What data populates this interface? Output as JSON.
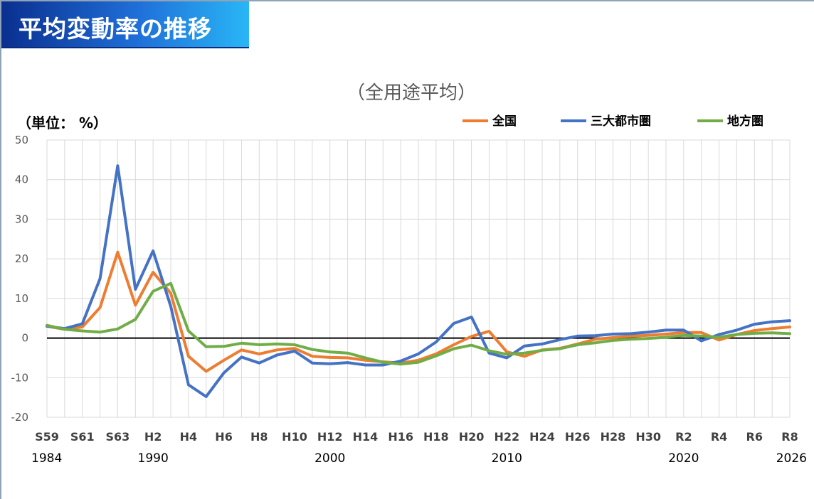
{
  "page_title": "平均変動率の推移",
  "colors": {
    "banner_start": "#0a2f8f",
    "banner_end": "#29b6f6",
    "national": "#ed7d31",
    "three_metro": "#4472c4",
    "regional": "#70ad47",
    "zero_line": "#000000",
    "grid": "#d9d9d9"
  },
  "chart_data": {
    "type": "line",
    "title": "（全用途平均）",
    "unit_label": "（単位：  %）",
    "legend_position": "top-right",
    "grid": true,
    "ylim": [
      -20,
      50
    ],
    "yticks": [
      -20,
      -10,
      0,
      10,
      20,
      30,
      40,
      50
    ],
    "x": [
      1984,
      1985,
      1986,
      1987,
      1988,
      1989,
      1990,
      1991,
      1992,
      1993,
      1994,
      1995,
      1996,
      1997,
      1998,
      1999,
      2000,
      2001,
      2002,
      2003,
      2004,
      2005,
      2006,
      2007,
      2008,
      2009,
      2010,
      2011,
      2012,
      2013,
      2014,
      2015,
      2016,
      2017,
      2018,
      2019,
      2020,
      2021,
      2022,
      2023,
      2024,
      2025,
      2026
    ],
    "xlim": [
      1984,
      2026
    ],
    "era_tick_labels": [
      {
        "x": 1984,
        "label": "S59"
      },
      {
        "x": 1986,
        "label": "S61"
      },
      {
        "x": 1988,
        "label": "S63"
      },
      {
        "x": 1990,
        "label": "H2"
      },
      {
        "x": 1992,
        "label": "H4"
      },
      {
        "x": 1994,
        "label": "H6"
      },
      {
        "x": 1996,
        "label": "H8"
      },
      {
        "x": 1998,
        "label": "H10"
      },
      {
        "x": 2000,
        "label": "H12"
      },
      {
        "x": 2002,
        "label": "H14"
      },
      {
        "x": 2004,
        "label": "H16"
      },
      {
        "x": 2006,
        "label": "H18"
      },
      {
        "x": 2008,
        "label": "H20"
      },
      {
        "x": 2010,
        "label": "H22"
      },
      {
        "x": 2012,
        "label": "H24"
      },
      {
        "x": 2014,
        "label": "H26"
      },
      {
        "x": 2016,
        "label": "H28"
      },
      {
        "x": 2018,
        "label": "H30"
      },
      {
        "x": 2020,
        "label": "R2"
      },
      {
        "x": 2022,
        "label": "R4"
      },
      {
        "x": 2024,
        "label": "R6"
      },
      {
        "x": 2026,
        "label": "R8"
      }
    ],
    "year_tick_labels": [
      {
        "x": 1984,
        "label": "1984"
      },
      {
        "x": 1990,
        "label": "1990"
      },
      {
        "x": 2000,
        "label": "2000"
      },
      {
        "x": 2010,
        "label": "2010"
      },
      {
        "x": 2020,
        "label": "2020"
      },
      {
        "x": 2026,
        "label": "2026"
      }
    ],
    "series": [
      {
        "name": "全国",
        "color": "#ed7d31",
        "values": [
          3.0,
          2.2,
          2.8,
          7.7,
          21.7,
          8.3,
          16.6,
          11.3,
          -4.6,
          -8.4,
          -5.6,
          -3.0,
          -4.0,
          -3.0,
          -2.6,
          -4.6,
          -4.9,
          -5.0,
          -5.6,
          -6.0,
          -6.3,
          -5.6,
          -4.0,
          -1.7,
          0.4,
          1.7,
          -3.5,
          -4.6,
          -3.0,
          -2.6,
          -1.5,
          -0.3,
          0.1,
          0.5,
          0.7,
          1.0,
          1.4,
          1.4,
          -0.5,
          0.9,
          1.9,
          2.4,
          2.8
        ]
      },
      {
        "name": "三大都市圏",
        "color": "#4472c4",
        "values": [
          3.0,
          2.4,
          3.6,
          15.0,
          43.5,
          12.3,
          22.0,
          8.0,
          -11.8,
          -14.8,
          -8.8,
          -4.8,
          -6.3,
          -4.3,
          -3.3,
          -6.3,
          -6.5,
          -6.2,
          -6.8,
          -6.8,
          -5.8,
          -4.0,
          -1.0,
          3.7,
          5.3,
          -3.8,
          -5.0,
          -2.0,
          -1.5,
          -0.4,
          0.5,
          0.6,
          1.0,
          1.1,
          1.5,
          2.0,
          2.0,
          -0.7,
          0.9,
          2.0,
          3.5,
          4.1,
          4.4
        ]
      },
      {
        "name": "地方圏",
        "color": "#70ad47",
        "values": [
          3.2,
          2.2,
          1.8,
          1.5,
          2.3,
          4.7,
          11.8,
          13.8,
          1.8,
          -2.2,
          -2.1,
          -1.3,
          -1.7,
          -1.5,
          -1.7,
          -2.9,
          -3.5,
          -3.8,
          -5.0,
          -6.1,
          -6.6,
          -6.1,
          -4.5,
          -2.7,
          -1.8,
          -3.2,
          -4.1,
          -3.8,
          -3.1,
          -2.7,
          -1.7,
          -1.2,
          -0.6,
          -0.3,
          -0.1,
          0.2,
          0.7,
          0.5,
          0.2,
          0.9,
          1.2,
          1.3,
          1.1
        ]
      }
    ]
  }
}
